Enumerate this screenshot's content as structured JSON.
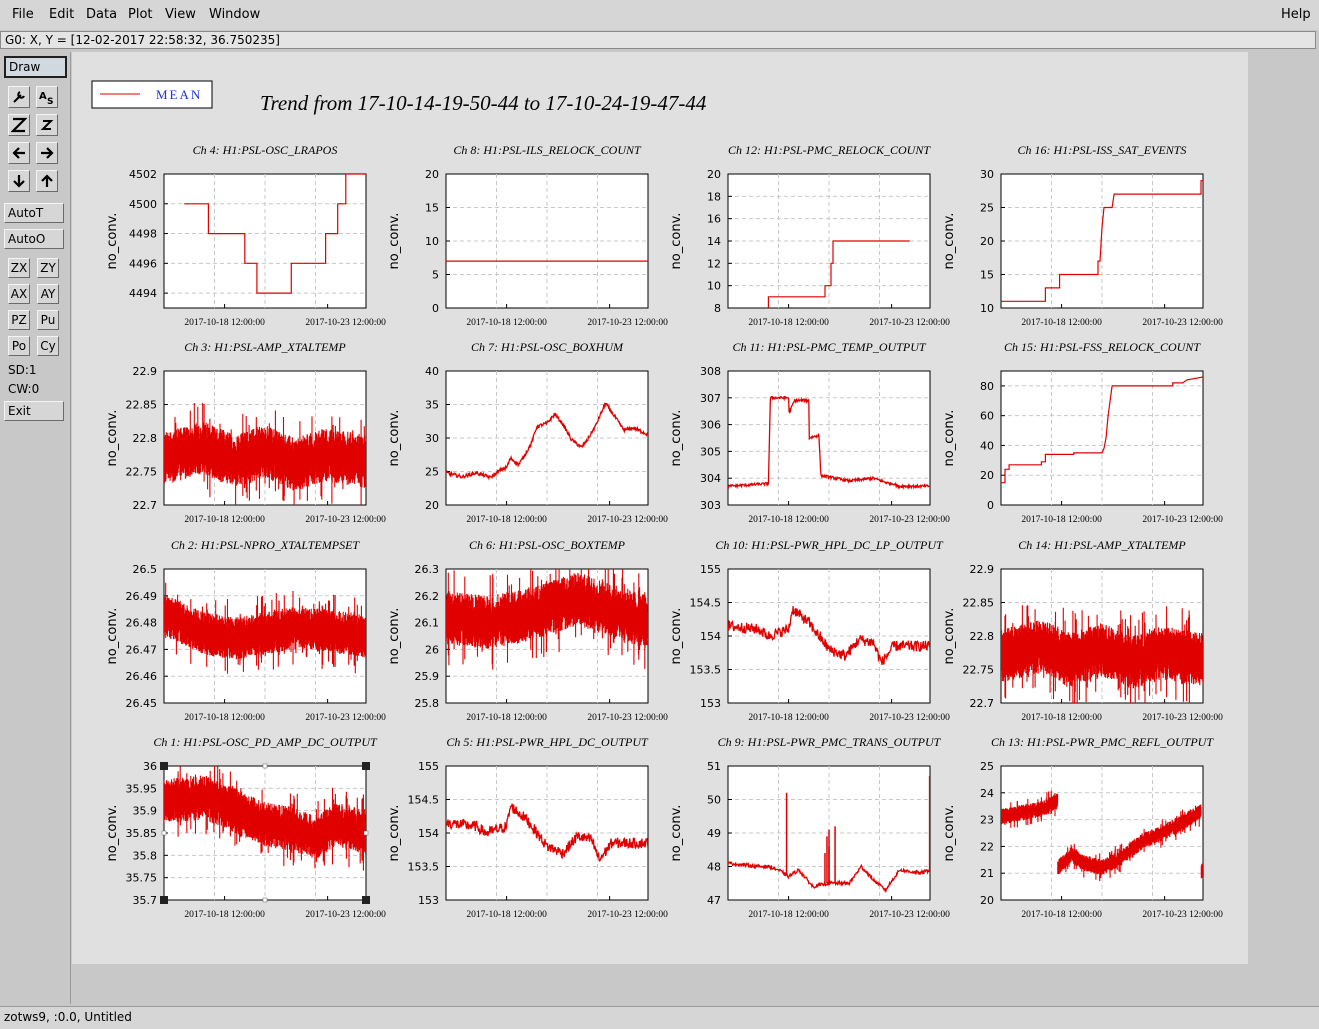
{
  "menubar": {
    "items": [
      "File",
      "Edit",
      "Data",
      "Plot",
      "View",
      "Window"
    ],
    "help": "Help"
  },
  "coord_readout": "G0: X, Y = [12-02-2017 22:58:32, 36.750235]",
  "toolbar": {
    "draw": "Draw",
    "autoT": "AutoT",
    "autoO": "AutoO",
    "zx": "ZX",
    "zy": "ZY",
    "ax": "AX",
    "ay": "AY",
    "pz": "PZ",
    "pu": "Pu",
    "po": "Po",
    "cy": "Cy",
    "sd": "SD:1",
    "cw": "CW:0",
    "exit": "Exit"
  },
  "status": "zotws9, :0.0, Untitled",
  "chart_data": {
    "title": "Trend from 17-10-14-19-50-44 to 17-10-24-19-47-44",
    "legend": {
      "label": "MEAN",
      "color": "#e00000",
      "position": "top-left"
    },
    "ylabel": "no_conv.",
    "x_tick_labels": [
      "2017-10-18 12:00:00",
      "2017-10-23 12:00:00"
    ],
    "x_range": [
      "2017-10-14 19:50:44",
      "2017-10-24 19:47:44"
    ],
    "grid": true,
    "line_color": "#e00000",
    "panels": [
      {
        "title": "Ch 4: H1:PSL-OSC_LRAPOS",
        "ylim": [
          4493,
          4502
        ],
        "yticks": [
          4494,
          4496,
          4498,
          4500,
          4502
        ],
        "style": "step",
        "points": [
          [
            0.1,
            4500
          ],
          [
            0.22,
            4500
          ],
          [
            0.22,
            4498
          ],
          [
            0.4,
            4498
          ],
          [
            0.4,
            4496
          ],
          [
            0.46,
            4496
          ],
          [
            0.46,
            4494
          ],
          [
            0.63,
            4494
          ],
          [
            0.63,
            4496
          ],
          [
            0.8,
            4496
          ],
          [
            0.8,
            4498
          ],
          [
            0.86,
            4498
          ],
          [
            0.86,
            4500
          ],
          [
            0.9,
            4500
          ],
          [
            0.9,
            4502
          ],
          [
            1.0,
            4502
          ]
        ]
      },
      {
        "title": "Ch 8: H1:PSL-ILS_RELOCK_COUNT",
        "ylim": [
          0,
          20
        ],
        "yticks": [
          0,
          5,
          10,
          15,
          20
        ],
        "style": "step",
        "points": [
          [
            0,
            7
          ],
          [
            1,
            7
          ]
        ]
      },
      {
        "title": "Ch 12: H1:PSL-PMC_RELOCK_COUNT",
        "ylim": [
          8,
          20
        ],
        "yticks": [
          8,
          10,
          12,
          14,
          16,
          18,
          20
        ],
        "style": "step",
        "points": [
          [
            0.2,
            8
          ],
          [
            0.2,
            9
          ],
          [
            0.46,
            9
          ],
          [
            0.46,
            9
          ],
          [
            0.48,
            9
          ],
          [
            0.48,
            10
          ],
          [
            0.51,
            10
          ],
          [
            0.51,
            12
          ],
          [
            0.52,
            12
          ],
          [
            0.52,
            14
          ],
          [
            0.9,
            14
          ]
        ]
      },
      {
        "title": "Ch 16: H1:PSL-ISS_SAT_EVENTS",
        "ylim": [
          10,
          30
        ],
        "yticks": [
          10,
          15,
          20,
          25,
          30
        ],
        "style": "step",
        "points": [
          [
            0,
            11
          ],
          [
            0.22,
            11
          ],
          [
            0.22,
            13
          ],
          [
            0.29,
            13
          ],
          [
            0.29,
            15
          ],
          [
            0.48,
            15
          ],
          [
            0.48,
            17
          ],
          [
            0.49,
            17
          ],
          [
            0.5,
            22
          ],
          [
            0.51,
            25
          ],
          [
            0.55,
            25
          ],
          [
            0.56,
            27
          ],
          [
            0.99,
            27
          ],
          [
            0.99,
            29
          ],
          [
            1.0,
            29
          ]
        ]
      },
      {
        "title": "Ch 3: H1:PSL-AMP_XTALTEMP",
        "ylim": [
          22.7,
          22.9
        ],
        "yticks": [
          22.7,
          22.75,
          22.8,
          22.85,
          22.9
        ],
        "style": "noisy",
        "base": [
          [
            0,
            22.77
          ],
          [
            0.2,
            22.785
          ],
          [
            0.35,
            22.765
          ],
          [
            0.5,
            22.78
          ],
          [
            0.65,
            22.76
          ],
          [
            0.8,
            22.775
          ],
          [
            1,
            22.765
          ]
        ],
        "noise": 0.04
      },
      {
        "title": "Ch 7: H1:PSL-OSC_BOXHUM",
        "ylim": [
          20,
          40
        ],
        "yticks": [
          20,
          25,
          30,
          35,
          40
        ],
        "style": "line",
        "points": [
          [
            0,
            24.8
          ],
          [
            0.08,
            24.2
          ],
          [
            0.15,
            24.8
          ],
          [
            0.22,
            24.1
          ],
          [
            0.27,
            25.2
          ],
          [
            0.3,
            25.6
          ],
          [
            0.32,
            27
          ],
          [
            0.36,
            26
          ],
          [
            0.42,
            29
          ],
          [
            0.45,
            31.7
          ],
          [
            0.5,
            32.2
          ],
          [
            0.54,
            33.6
          ],
          [
            0.58,
            32
          ],
          [
            0.62,
            29.8
          ],
          [
            0.67,
            28.6
          ],
          [
            0.7,
            29.7
          ],
          [
            0.74,
            31.8
          ],
          [
            0.79,
            35.2
          ],
          [
            0.84,
            33
          ],
          [
            0.88,
            31.2
          ],
          [
            0.93,
            31.5
          ],
          [
            1,
            30.5
          ]
        ],
        "noise": 0.25
      },
      {
        "title": "Ch 11: H1:PSL-PMC_TEMP_OUTPUT",
        "ylim": [
          303,
          308
        ],
        "yticks": [
          303,
          304,
          305,
          306,
          307,
          308
        ],
        "style": "line",
        "points": [
          [
            0,
            303.7
          ],
          [
            0.2,
            303.8
          ],
          [
            0.21,
            307
          ],
          [
            0.3,
            307
          ],
          [
            0.3,
            306.4
          ],
          [
            0.33,
            306.9
          ],
          [
            0.4,
            306.9
          ],
          [
            0.4,
            305.5
          ],
          [
            0.45,
            305.6
          ],
          [
            0.46,
            304.1
          ],
          [
            0.6,
            303.9
          ],
          [
            0.72,
            304
          ],
          [
            0.8,
            303.8
          ],
          [
            0.82,
            303.8
          ],
          [
            0.84,
            303.7
          ],
          [
            1,
            303.7
          ]
        ],
        "noise": 0.05
      },
      {
        "title": "Ch 15: H1:PSL-FSS_RELOCK_COUNT",
        "ylim": [
          0,
          90
        ],
        "yticks": [
          0,
          20,
          40,
          60,
          80
        ],
        "style": "step",
        "points": [
          [
            0,
            15
          ],
          [
            0.02,
            15
          ],
          [
            0.02,
            24
          ],
          [
            0.04,
            24
          ],
          [
            0.04,
            27
          ],
          [
            0.2,
            27
          ],
          [
            0.2,
            29
          ],
          [
            0.22,
            29
          ],
          [
            0.22,
            34
          ],
          [
            0.36,
            34
          ],
          [
            0.36,
            35
          ],
          [
            0.5,
            35
          ],
          [
            0.51,
            38
          ],
          [
            0.52,
            45
          ],
          [
            0.53,
            60
          ],
          [
            0.55,
            80
          ],
          [
            0.85,
            80
          ],
          [
            0.85,
            82
          ],
          [
            0.9,
            82
          ],
          [
            0.92,
            84
          ],
          [
            1,
            86
          ]
        ]
      },
      {
        "title": "Ch 2: H1:PSL-NPRO_XTALTEMPSET",
        "ylim": [
          26.45,
          26.5
        ],
        "yticks": [
          26.45,
          26.46,
          26.47,
          26.48,
          26.49,
          26.5
        ],
        "style": "noisy",
        "base": [
          [
            0,
            26.483
          ],
          [
            0.2,
            26.476
          ],
          [
            0.35,
            26.474
          ],
          [
            0.5,
            26.476
          ],
          [
            0.65,
            26.478
          ],
          [
            0.8,
            26.477
          ],
          [
            1,
            26.475
          ]
        ],
        "noise": 0.008
      },
      {
        "title": "Ch 6: H1:PSL-OSC_BOXTEMP",
        "ylim": [
          25.8,
          26.3
        ],
        "yticks": [
          25.8,
          25.9,
          26,
          26.1,
          26.2,
          26.3
        ],
        "style": "noisy",
        "base": [
          [
            0,
            26.12
          ],
          [
            0.2,
            26.1
          ],
          [
            0.35,
            26.12
          ],
          [
            0.5,
            26.15
          ],
          [
            0.65,
            26.19
          ],
          [
            0.8,
            26.15
          ],
          [
            1,
            26.1
          ]
        ],
        "noise": 0.1
      },
      {
        "title": "Ch 10: H1:PSL-PWR_HPL_DC_LP_OUTPUT",
        "ylim": [
          153,
          155
        ],
        "yticks": [
          153,
          153.5,
          154,
          154.5,
          155
        ],
        "style": "line",
        "points": [
          [
            0,
            154.15
          ],
          [
            0.15,
            154.1
          ],
          [
            0.2,
            154
          ],
          [
            0.3,
            154.1
          ],
          [
            0.32,
            154.4
          ],
          [
            0.4,
            154.2
          ],
          [
            0.45,
            154
          ],
          [
            0.5,
            153.8
          ],
          [
            0.58,
            153.7
          ],
          [
            0.65,
            153.95
          ],
          [
            0.72,
            153.9
          ],
          [
            0.76,
            153.6
          ],
          [
            0.82,
            153.85
          ],
          [
            1,
            153.85
          ]
        ],
        "noise": 0.08
      },
      {
        "title": "Ch 14: H1:PSL-AMP_XTALTEMP",
        "ylim": [
          22.7,
          22.9
        ],
        "yticks": [
          22.7,
          22.75,
          22.8,
          22.85,
          22.9
        ],
        "style": "noisy",
        "base": [
          [
            0,
            22.77
          ],
          [
            0.2,
            22.785
          ],
          [
            0.35,
            22.765
          ],
          [
            0.5,
            22.78
          ],
          [
            0.65,
            22.76
          ],
          [
            0.8,
            22.775
          ],
          [
            1,
            22.765
          ]
        ],
        "noise": 0.04
      },
      {
        "title": "Ch 1: H1:PSL-OSC_PD_AMP_DC_OUTPUT",
        "ylim": [
          35.7,
          36
        ],
        "yticks": [
          35.7,
          35.75,
          35.8,
          35.85,
          35.9,
          35.95,
          36
        ],
        "style": "noisy",
        "base": [
          [
            0,
            35.92
          ],
          [
            0.2,
            35.93
          ],
          [
            0.3,
            35.91
          ],
          [
            0.5,
            35.87
          ],
          [
            0.62,
            35.86
          ],
          [
            0.75,
            35.84
          ],
          [
            0.85,
            35.87
          ],
          [
            1,
            35.85
          ]
        ],
        "noise": 0.05,
        "selected": true
      },
      {
        "title": "Ch 5: H1:PSL-PWR_HPL_DC_OUTPUT",
        "ylim": [
          153,
          155
        ],
        "yticks": [
          153,
          153.5,
          154,
          154.5,
          155
        ],
        "style": "line",
        "points": [
          [
            0,
            154.15
          ],
          [
            0.15,
            154.1
          ],
          [
            0.2,
            154
          ],
          [
            0.3,
            154.1
          ],
          [
            0.32,
            154.4
          ],
          [
            0.4,
            154.2
          ],
          [
            0.45,
            154
          ],
          [
            0.5,
            153.8
          ],
          [
            0.58,
            153.7
          ],
          [
            0.65,
            153.95
          ],
          [
            0.72,
            153.9
          ],
          [
            0.76,
            153.6
          ],
          [
            0.82,
            153.85
          ],
          [
            1,
            153.85
          ]
        ],
        "noise": 0.08
      },
      {
        "title": "Ch 9: H1:PSL-PWR_PMC_TRANS_OUTPUT",
        "ylim": [
          47,
          51
        ],
        "yticks": [
          47,
          48,
          49,
          50,
          51
        ],
        "style": "line",
        "points": [
          [
            0,
            48.1
          ],
          [
            0.15,
            48
          ],
          [
            0.2,
            48
          ],
          [
            0.25,
            47.9
          ],
          [
            0.3,
            47.7
          ],
          [
            0.35,
            47.9
          ],
          [
            0.42,
            47.4
          ],
          [
            0.5,
            47.5
          ],
          [
            0.6,
            47.5
          ],
          [
            0.66,
            48
          ],
          [
            0.72,
            47.6
          ],
          [
            0.78,
            47.3
          ],
          [
            0.85,
            47.9
          ],
          [
            0.95,
            47.8
          ],
          [
            1,
            47.9
          ]
        ],
        "noise": 0.05,
        "spikes": [
          [
            0.29,
            50.2
          ],
          [
            0.48,
            48.4
          ],
          [
            0.5,
            48.6
          ],
          [
            0.5,
            49.1
          ],
          [
            0.49,
            48.9
          ],
          [
            0.53,
            49.2
          ],
          [
            0.998,
            50.7
          ]
        ]
      },
      {
        "title": "Ch 13: H1:PSL-PWR_PMC_REFL_OUTPUT",
        "ylim": [
          20,
          25
        ],
        "yticks": [
          20,
          21,
          22,
          23,
          24,
          25
        ],
        "style": "noisy",
        "base": [
          [
            0,
            23.1
          ],
          [
            0.2,
            23.4
          ],
          [
            0.28,
            23.7
          ],
          [
            0.28,
            21.2
          ],
          [
            0.35,
            21.7
          ],
          [
            0.4,
            21.4
          ],
          [
            0.5,
            21.2
          ],
          [
            0.6,
            21.6
          ],
          [
            0.7,
            22.2
          ],
          [
            0.8,
            22.5
          ],
          [
            0.9,
            22.9
          ],
          [
            0.99,
            23.3
          ],
          [
            0.99,
            21.1
          ],
          [
            1,
            21.1
          ]
        ],
        "noise": 0.3
      }
    ]
  }
}
